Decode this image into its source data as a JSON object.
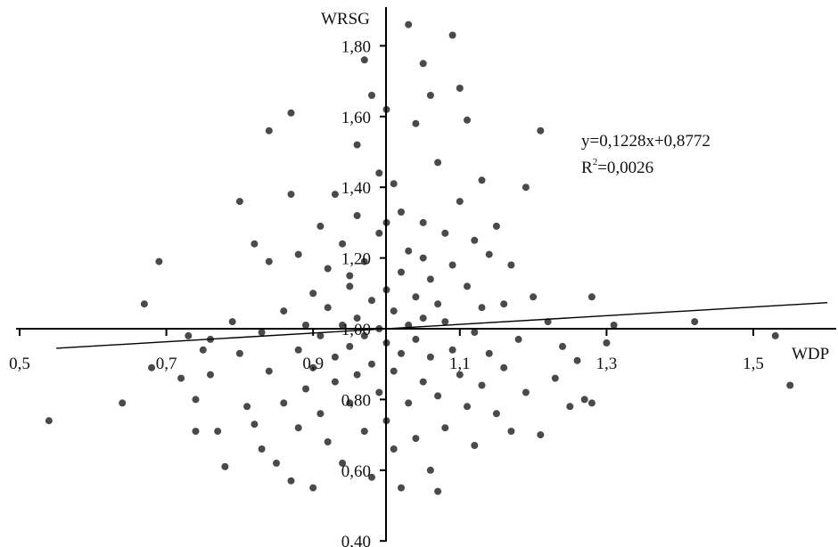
{
  "chart_data": {
    "type": "scatter",
    "title": "",
    "xlabel": "WDP",
    "ylabel": "WRSG",
    "xlim": [
      0.5,
      1.6
    ],
    "ylim": [
      0.4,
      1.85
    ],
    "x_ticks": [
      0.5,
      0.7,
      0.9,
      1.1,
      1.3,
      1.5
    ],
    "x_tick_labels": [
      "0,5",
      "0,7",
      "0,9",
      "1,1",
      "1,3",
      "1,5"
    ],
    "y_ticks": [
      0.4,
      0.6,
      0.8,
      1.0,
      1.2,
      1.4,
      1.6,
      1.8
    ],
    "y_tick_labels": [
      "0,40",
      "0,60",
      "0,80",
      "1,00",
      "1,20",
      "1,40",
      "1,60",
      "1,80"
    ],
    "axes_cross": [
      1.0,
      1.0
    ],
    "grid": false,
    "legend": "none",
    "marker_color": "#4a4a4a",
    "line_color": "#000000",
    "trendline": {
      "slope": 0.1228,
      "intercept": 0.8772,
      "x_range": [
        0.55,
        1.55
      ]
    },
    "annotations": {
      "equation": "y=0,1228x+0,8772",
      "r_label": "R",
      "r_sup": "2",
      "r_value": "=0,0026"
    },
    "points_note": "representative subset of ~1500 observations; dense cloud centered near (1.00, 1.00)",
    "points": [
      [
        0.54,
        0.74
      ],
      [
        0.64,
        0.79
      ],
      [
        0.67,
        1.07
      ],
      [
        0.69,
        1.19
      ],
      [
        0.68,
        0.89
      ],
      [
        0.72,
        0.86
      ],
      [
        0.73,
        0.98
      ],
      [
        0.74,
        0.71
      ],
      [
        0.74,
        0.8
      ],
      [
        0.75,
        0.94
      ],
      [
        0.76,
        0.97
      ],
      [
        0.76,
        0.87
      ],
      [
        0.77,
        0.71
      ],
      [
        0.78,
        0.61
      ],
      [
        0.79,
        1.02
      ],
      [
        0.8,
        1.36
      ],
      [
        0.8,
        0.93
      ],
      [
        0.81,
        0.78
      ],
      [
        0.82,
        1.24
      ],
      [
        0.82,
        0.73
      ],
      [
        0.83,
        0.99
      ],
      [
        0.83,
        0.66
      ],
      [
        0.84,
        1.56
      ],
      [
        0.84,
        1.19
      ],
      [
        0.84,
        0.88
      ],
      [
        0.85,
        0.62
      ],
      [
        0.86,
        1.05
      ],
      [
        0.86,
        0.79
      ],
      [
        0.87,
        1.61
      ],
      [
        0.87,
        1.38
      ],
      [
        0.87,
        0.57
      ],
      [
        0.88,
        1.21
      ],
      [
        0.88,
        0.94
      ],
      [
        0.88,
        0.72
      ],
      [
        0.89,
        1.01
      ],
      [
        0.89,
        0.83
      ],
      [
        0.9,
        1.1
      ],
      [
        0.9,
        0.89
      ],
      [
        0.9,
        0.55
      ],
      [
        0.91,
        1.29
      ],
      [
        0.91,
        0.98
      ],
      [
        0.91,
        0.76
      ],
      [
        0.92,
        1.06
      ],
      [
        0.92,
        0.68
      ],
      [
        0.92,
        1.17
      ],
      [
        0.93,
        0.92
      ],
      [
        0.93,
        1.38
      ],
      [
        0.93,
        0.85
      ],
      [
        0.94,
        1.01
      ],
      [
        0.94,
        1.24
      ],
      [
        0.94,
        0.62
      ],
      [
        0.95,
        1.12
      ],
      [
        0.95,
        0.95
      ],
      [
        0.95,
        0.79
      ],
      [
        0.96,
        1.52
      ],
      [
        0.96,
        1.03
      ],
      [
        0.96,
        0.87
      ],
      [
        0.96,
        1.32
      ],
      [
        0.97,
        1.76
      ],
      [
        0.97,
        0.98
      ],
      [
        0.97,
        0.71
      ],
      [
        0.97,
        1.19
      ],
      [
        0.98,
        1.66
      ],
      [
        0.98,
        1.08
      ],
      [
        0.98,
        0.9
      ],
      [
        0.98,
        0.58
      ],
      [
        0.99,
        1.44
      ],
      [
        0.99,
        1.0
      ],
      [
        0.99,
        0.82
      ],
      [
        0.99,
        1.27
      ],
      [
        1.0,
        1.62
      ],
      [
        1.0,
        1.11
      ],
      [
        1.0,
        0.96
      ],
      [
        1.0,
        0.74
      ],
      [
        1.01,
        1.41
      ],
      [
        1.01,
        1.05
      ],
      [
        1.01,
        0.88
      ],
      [
        1.01,
        0.66
      ],
      [
        1.02,
        1.33
      ],
      [
        1.02,
        1.16
      ],
      [
        1.02,
        0.93
      ],
      [
        1.02,
        0.55
      ],
      [
        1.03,
        1.86
      ],
      [
        1.03,
        1.22
      ],
      [
        1.03,
        1.01
      ],
      [
        1.03,
        0.79
      ],
      [
        1.04,
        1.58
      ],
      [
        1.04,
        1.09
      ],
      [
        1.04,
        0.97
      ],
      [
        1.04,
        0.69
      ],
      [
        1.05,
        1.75
      ],
      [
        1.05,
        1.3
      ],
      [
        1.05,
        1.03
      ],
      [
        1.05,
        0.85
      ],
      [
        1.06,
        1.66
      ],
      [
        1.06,
        1.14
      ],
      [
        1.06,
        0.92
      ],
      [
        1.06,
        0.6
      ],
      [
        1.07,
        1.47
      ],
      [
        1.07,
        1.07
      ],
      [
        1.07,
        0.81
      ],
      [
        1.07,
        0.54
      ],
      [
        1.08,
        1.27
      ],
      [
        1.08,
        1.02
      ],
      [
        1.08,
        0.72
      ],
      [
        1.09,
        1.83
      ],
      [
        1.09,
        1.18
      ],
      [
        1.09,
        0.94
      ],
      [
        1.1,
        1.68
      ],
      [
        1.1,
        1.36
      ],
      [
        1.1,
        0.87
      ],
      [
        1.11,
        1.59
      ],
      [
        1.11,
        1.12
      ],
      [
        1.11,
        0.78
      ],
      [
        1.12,
        1.25
      ],
      [
        1.12,
        0.99
      ],
      [
        1.12,
        0.67
      ],
      [
        1.13,
        1.42
      ],
      [
        1.13,
        1.06
      ],
      [
        1.13,
        0.84
      ],
      [
        1.14,
        1.21
      ],
      [
        1.14,
        0.93
      ],
      [
        1.15,
        1.29
      ],
      [
        1.15,
        0.76
      ],
      [
        1.16,
        1.07
      ],
      [
        1.16,
        0.89
      ],
      [
        1.17,
        1.18
      ],
      [
        1.17,
        0.71
      ],
      [
        1.18,
        0.97
      ],
      [
        1.19,
        1.4
      ],
      [
        1.19,
        0.82
      ],
      [
        1.2,
        1.09
      ],
      [
        1.21,
        1.56
      ],
      [
        1.21,
        0.7
      ],
      [
        1.22,
        1.02
      ],
      [
        1.23,
        0.86
      ],
      [
        1.24,
        0.95
      ],
      [
        1.25,
        0.78
      ],
      [
        1.26,
        0.91
      ],
      [
        1.27,
        0.8
      ],
      [
        1.28,
        1.09
      ],
      [
        1.28,
        0.79
      ],
      [
        1.3,
        0.96
      ],
      [
        1.31,
        1.01
      ],
      [
        1.42,
        1.02
      ],
      [
        1.55,
        0.84
      ],
      [
        1.53,
        0.98
      ],
      [
        0.95,
        1.15
      ],
      [
        1.05,
        1.2
      ],
      [
        1.0,
        1.3
      ]
    ]
  }
}
